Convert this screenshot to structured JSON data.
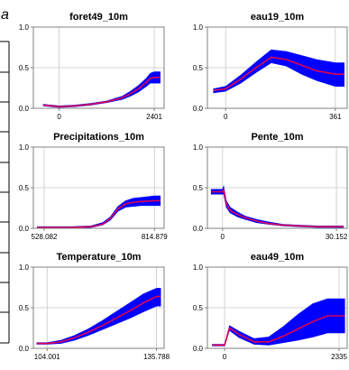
{
  "panel_label": "a",
  "colors": {
    "band": "#0000ff",
    "line": "#e0004f",
    "axis": "#808080",
    "grid": "#c8c8c8",
    "frame": "#000000"
  },
  "chart_data": [
    {
      "type": "line",
      "title": "foret49_10m",
      "xlim": [
        -650,
        2650
      ],
      "ylim": [
        0,
        1
      ],
      "ytick_labels": [
        "0.0",
        "0.5",
        "1.0"
      ],
      "xtick_values": [
        0,
        2401
      ],
      "xtick_labels": [
        "0",
        "2401"
      ],
      "grid": true,
      "series": [
        {
          "x": [
            -400,
            0,
            400,
            800,
            1200,
            1600,
            1800,
            2000,
            2200,
            2300,
            2401,
            2550
          ],
          "y": [
            0.04,
            0.02,
            0.03,
            0.05,
            0.08,
            0.13,
            0.18,
            0.24,
            0.32,
            0.37,
            0.38,
            0.38
          ],
          "upper": [
            0.05,
            0.03,
            0.04,
            0.06,
            0.09,
            0.15,
            0.21,
            0.28,
            0.37,
            0.43,
            0.45,
            0.45
          ],
          "lower": [
            0.03,
            0.01,
            0.02,
            0.04,
            0.07,
            0.11,
            0.15,
            0.2,
            0.27,
            0.31,
            0.31,
            0.31
          ]
        }
      ]
    },
    {
      "type": "line",
      "title": "eau19_10m",
      "xlim": [
        -60,
        400
      ],
      "ylim": [
        0,
        1
      ],
      "ytick_labels": [
        "0.0",
        "0.5",
        "1.0"
      ],
      "xtick_values": [
        0,
        361
      ],
      "xtick_labels": [
        "0",
        "361"
      ],
      "grid": true,
      "series": [
        {
          "x": [
            -40,
            0,
            50,
            100,
            150,
            200,
            250,
            300,
            361,
            390
          ],
          "y": [
            0.22,
            0.24,
            0.36,
            0.5,
            0.63,
            0.6,
            0.53,
            0.46,
            0.42,
            0.42
          ],
          "upper": [
            0.24,
            0.27,
            0.41,
            0.57,
            0.72,
            0.7,
            0.65,
            0.6,
            0.56,
            0.56
          ],
          "lower": [
            0.19,
            0.21,
            0.31,
            0.44,
            0.56,
            0.52,
            0.42,
            0.34,
            0.27,
            0.27
          ]
        }
      ]
    },
    {
      "type": "line",
      "title": "Precipitations_10m",
      "xlim": [
        500,
        840
      ],
      "ylim": [
        0,
        1
      ],
      "ytick_labels": [
        "0.0",
        "0.5",
        "1.0"
      ],
      "xtick_values": [
        528.082,
        814.879
      ],
      "xtick_labels": [
        "528.082",
        "814.879"
      ],
      "grid": true,
      "series": [
        {
          "x": [
            510,
            528.082,
            600,
            650,
            680,
            700,
            720,
            740,
            760,
            780,
            814.879,
            830
          ],
          "y": [
            0.01,
            0.01,
            0.01,
            0.02,
            0.05,
            0.12,
            0.24,
            0.3,
            0.32,
            0.33,
            0.34,
            0.34
          ],
          "upper": [
            0.02,
            0.02,
            0.02,
            0.03,
            0.07,
            0.14,
            0.27,
            0.34,
            0.37,
            0.38,
            0.4,
            0.4
          ],
          "lower": [
            0.005,
            0.005,
            0.005,
            0.01,
            0.04,
            0.1,
            0.21,
            0.26,
            0.27,
            0.28,
            0.28,
            0.28
          ]
        }
      ]
    },
    {
      "type": "line",
      "title": "Pente_10m",
      "xlim": [
        -4,
        33
      ],
      "ylim": [
        0,
        1
      ],
      "ytick_labels": [
        "0.0",
        "0.5",
        "1.0"
      ],
      "xtick_values": [
        0,
        30.152
      ],
      "xtick_labels": [
        "0",
        "30.152"
      ],
      "grid": true,
      "series": [
        {
          "x": [
            -3,
            0,
            0.3,
            1,
            2,
            4,
            6,
            9,
            12,
            16,
            20,
            25,
            30.152,
            32
          ],
          "y": [
            0.45,
            0.45,
            0.47,
            0.3,
            0.22,
            0.17,
            0.13,
            0.09,
            0.06,
            0.04,
            0.03,
            0.02,
            0.02,
            0.02
          ],
          "upper": [
            0.48,
            0.48,
            0.52,
            0.34,
            0.26,
            0.2,
            0.15,
            0.11,
            0.08,
            0.05,
            0.04,
            0.03,
            0.03,
            0.03
          ],
          "lower": [
            0.42,
            0.42,
            0.42,
            0.26,
            0.19,
            0.14,
            0.11,
            0.07,
            0.05,
            0.03,
            0.02,
            0.01,
            0.01,
            0.01
          ]
        }
      ]
    },
    {
      "type": "line",
      "title": "Temperature_10m",
      "xlim": [
        100,
        138
      ],
      "ylim": [
        0,
        1
      ],
      "ytick_labels": [
        "0.0",
        "0.5",
        "1.0"
      ],
      "xtick_values": [
        104.001,
        135.788
      ],
      "xtick_labels": [
        "104.001",
        "135.788"
      ],
      "grid": true,
      "series": [
        {
          "x": [
            101,
            104.001,
            108,
            112,
            116,
            120,
            124,
            128,
            132,
            135.788,
            137
          ],
          "y": [
            0.06,
            0.06,
            0.08,
            0.13,
            0.2,
            0.28,
            0.37,
            0.46,
            0.56,
            0.64,
            0.64
          ],
          "upper": [
            0.07,
            0.07,
            0.1,
            0.16,
            0.24,
            0.34,
            0.45,
            0.56,
            0.67,
            0.74,
            0.74
          ],
          "lower": [
            0.05,
            0.05,
            0.06,
            0.1,
            0.16,
            0.23,
            0.3,
            0.37,
            0.45,
            0.52,
            0.52
          ]
        }
      ]
    },
    {
      "type": "line",
      "title": "eau49_10m",
      "xlim": [
        -350,
        2500
      ],
      "ylim": [
        0,
        1
      ],
      "ytick_labels": [
        "0.0",
        "0.5",
        "1.0"
      ],
      "xtick_values": [
        0,
        2335
      ],
      "xtick_labels": [
        "0",
        "2335"
      ],
      "grid": true,
      "series": [
        {
          "x": [
            -250,
            0,
            100,
            300,
            600,
            900,
            1200,
            1500,
            1800,
            2100,
            2335,
            2450
          ],
          "y": [
            0.04,
            0.04,
            0.25,
            0.17,
            0.08,
            0.08,
            0.15,
            0.24,
            0.33,
            0.4,
            0.4,
            0.4
          ],
          "upper": [
            0.05,
            0.05,
            0.28,
            0.21,
            0.12,
            0.14,
            0.27,
            0.42,
            0.55,
            0.61,
            0.61,
            0.61
          ],
          "lower": [
            0.03,
            0.03,
            0.22,
            0.13,
            0.05,
            0.04,
            0.07,
            0.1,
            0.14,
            0.19,
            0.19,
            0.19
          ]
        }
      ]
    }
  ]
}
